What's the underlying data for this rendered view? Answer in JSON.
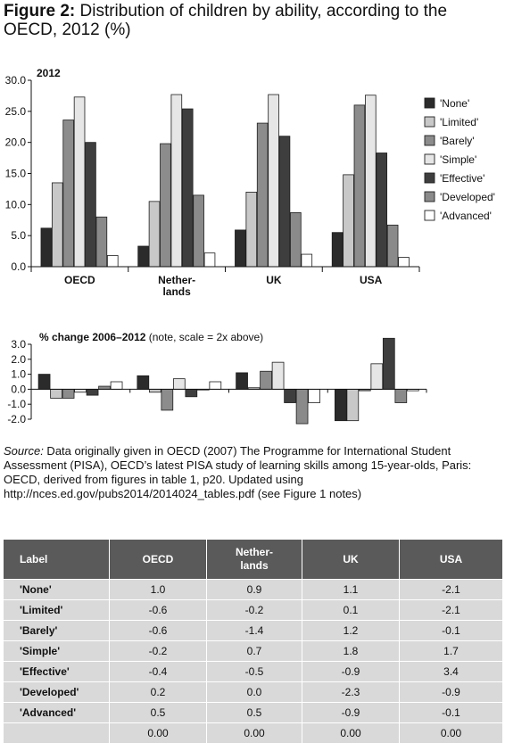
{
  "figure": {
    "title_bold": "Figure 2:",
    "title_rest": " Distribution of children by ability, according to the OECD, 2012 (%)"
  },
  "chart_data": [
    {
      "type": "bar",
      "title": "2012",
      "categories": [
        "OECD",
        "Nether-\nlands",
        "UK",
        "USA"
      ],
      "series": [
        {
          "name": "'None'",
          "color": "#2b2b2b",
          "values": [
            6.2,
            3.3,
            5.9,
            5.5
          ]
        },
        {
          "name": "'Limited'",
          "color": "#c8c8c8",
          "values": [
            13.5,
            10.5,
            12.0,
            14.8
          ]
        },
        {
          "name": "'Barely'",
          "color": "#8c8c8c",
          "values": [
            23.6,
            19.8,
            23.1,
            26.0
          ]
        },
        {
          "name": "'Simple'",
          "color": "#e6e6e6",
          "values": [
            27.3,
            27.7,
            27.7,
            27.6
          ]
        },
        {
          "name": "'Effective'",
          "color": "#3e3e3e",
          "values": [
            20.0,
            25.4,
            21.0,
            18.3
          ]
        },
        {
          "name": "'Developed'",
          "color": "#8a8a8a",
          "values": [
            8.0,
            11.5,
            8.7,
            6.7
          ]
        },
        {
          "name": "'Advanced'",
          "color": "#ffffff",
          "values": [
            1.8,
            2.2,
            2.0,
            1.5
          ]
        }
      ],
      "ylim": [
        0,
        30
      ],
      "yticks": [
        "0.0",
        "5.0",
        "10.0",
        "15.0",
        "20.0",
        "25.0",
        "30.0"
      ],
      "legend": "right",
      "grid": false
    },
    {
      "type": "bar",
      "title_bold": "% change 2006–2012",
      "title_rest": " (note, scale = 2x above)",
      "categories": [
        "OECD",
        "Nether-\nlands",
        "UK",
        "USA"
      ],
      "series": [
        {
          "name": "'None'",
          "color": "#2b2b2b",
          "values": [
            1.0,
            0.9,
            1.1,
            -2.1
          ]
        },
        {
          "name": "'Limited'",
          "color": "#c8c8c8",
          "values": [
            -0.6,
            -0.2,
            0.1,
            -2.1
          ]
        },
        {
          "name": "'Barely'",
          "color": "#8c8c8c",
          "values": [
            -0.6,
            -1.4,
            1.2,
            -0.1
          ]
        },
        {
          "name": "'Simple'",
          "color": "#e6e6e6",
          "values": [
            -0.2,
            0.7,
            1.8,
            1.7
          ]
        },
        {
          "name": "'Effective'",
          "color": "#3e3e3e",
          "values": [
            -0.4,
            -0.5,
            -0.9,
            3.4
          ]
        },
        {
          "name": "'Developed'",
          "color": "#8a8a8a",
          "values": [
            0.2,
            0.0,
            -2.3,
            -0.9
          ]
        },
        {
          "name": "'Advanced'",
          "color": "#ffffff",
          "values": [
            0.5,
            0.5,
            -0.9,
            -0.1
          ]
        }
      ],
      "ylim": [
        -2.0,
        3.0
      ],
      "yticks": [
        "-2.0",
        "-1.0",
        "0.0",
        "1.0",
        "2.0",
        "3.0"
      ],
      "grid": false
    }
  ],
  "source": {
    "label": "Source:",
    "text": " Data originally given in OECD (2007) The Programme for International Student Assessment (PISA), OECD’s latest PISA study of learning skills among 15-year-olds, Paris: OECD, derived from figures in table 1, p20. Updated using http://nces.ed.gov/pubs2014/2014024_tables.pdf (see Figure 1 notes)"
  },
  "table": {
    "headers": [
      "Label",
      "OECD",
      "Nether-\nlands",
      "UK",
      "USA"
    ],
    "rows": [
      [
        "'None'",
        "1.0",
        "0.9",
        "1.1",
        "-2.1"
      ],
      [
        "'Limited'",
        "-0.6",
        "-0.2",
        "0.1",
        "-2.1"
      ],
      [
        "'Barely'",
        "-0.6",
        "-1.4",
        "1.2",
        "-0.1"
      ],
      [
        "'Simple'",
        "-0.2",
        "0.7",
        "1.8",
        "1.7"
      ],
      [
        "'Effective'",
        "-0.4",
        "-0.5",
        "-0.9",
        "3.4"
      ],
      [
        "'Developed'",
        "0.2",
        "0.0",
        "-2.3",
        "-0.9"
      ],
      [
        "'Advanced'",
        "0.5",
        "0.5",
        "-0.9",
        "-0.1"
      ],
      [
        "",
        "0.00",
        "0.00",
        "0.00",
        "0.00"
      ]
    ]
  }
}
